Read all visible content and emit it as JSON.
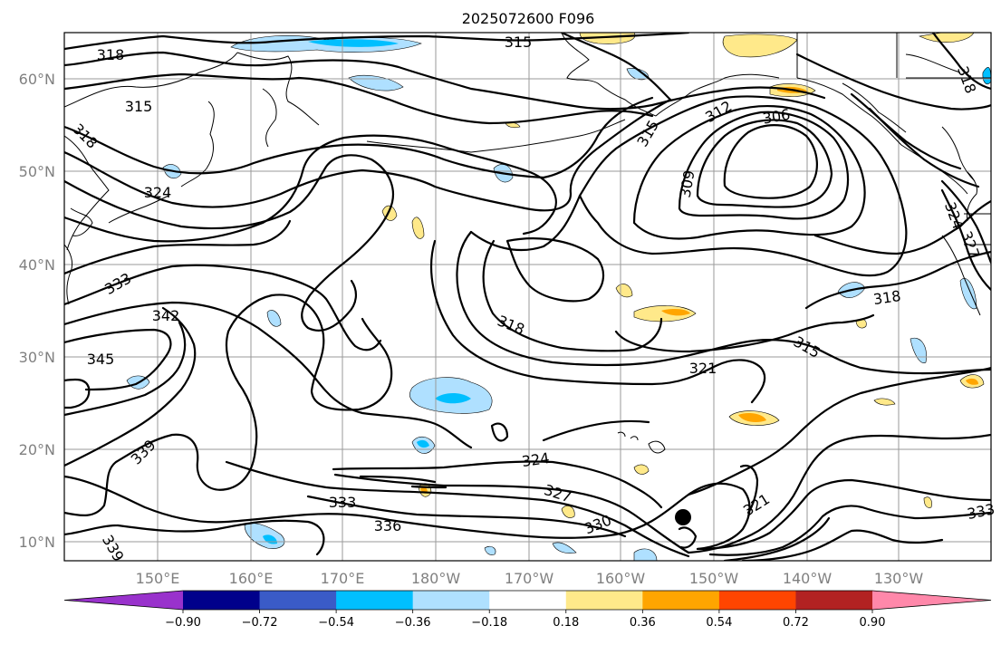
{
  "title": "2025072600 F096",
  "lon_labels": [
    "150°E",
    "160°E",
    "170°E",
    "180°W",
    "170°W",
    "160°W",
    "150°W",
    "140°W",
    "130°W"
  ],
  "lat_labels": [
    "10°N",
    "20°N",
    "30°N",
    "40°N",
    "50°N",
    "60°N"
  ],
  "colorbar": {
    "colors": [
      "#9932cc",
      "#00008b",
      "#3a5bc7",
      "#00bfff",
      "#afe0ff",
      "#ffffff",
      "#ffe98a",
      "#ffa500",
      "#ff4500",
      "#b22222",
      "#ff88aa"
    ],
    "tick_labels": [
      "−0.90",
      "−0.72",
      "−0.54",
      "−0.36",
      "−0.18",
      "0.18",
      "0.36",
      "0.54",
      "0.72",
      "0.90"
    ]
  },
  "contour_labels": [
    "318",
    "315",
    "318",
    "324",
    "333",
    "342",
    "345",
    "339",
    "339",
    "333",
    "336",
    "324",
    "327",
    "330",
    "321",
    "318",
    "321",
    "318",
    "315",
    "312",
    "306",
    "309",
    "315",
    "315",
    "333",
    "318",
    "327",
    "324"
  ],
  "grid_lon": [
    150,
    160,
    170,
    180,
    -170,
    -160,
    -150,
    -140,
    -130
  ],
  "grid_lat": [
    10,
    20,
    30,
    40,
    50,
    60
  ]
}
